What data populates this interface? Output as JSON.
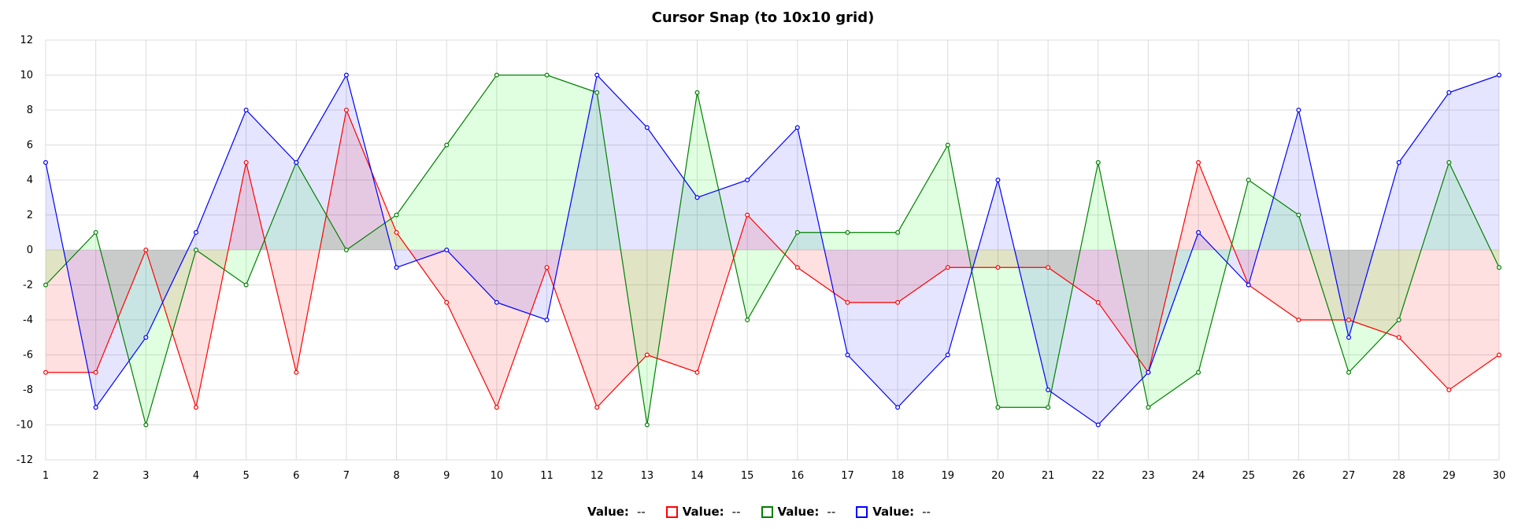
{
  "chart_data": {
    "type": "area",
    "title": "Cursor Snap (to 10x10 grid)",
    "xlabel": "",
    "ylabel": "",
    "x": [
      1,
      2,
      3,
      4,
      5,
      6,
      7,
      8,
      9,
      10,
      11,
      12,
      13,
      14,
      15,
      16,
      17,
      18,
      19,
      20,
      21,
      22,
      23,
      24,
      25,
      26,
      27,
      28,
      29,
      30
    ],
    "xlim": [
      1,
      30
    ],
    "ylim": [
      -12,
      12
    ],
    "yticks": [
      12,
      10,
      8,
      6,
      4,
      2,
      0,
      -2,
      -4,
      -6,
      -8,
      -10,
      -12
    ],
    "grid": true,
    "legend_position": "bottom",
    "series": [
      {
        "color": "#ff0000",
        "fill": "rgba(255,0,0,0.12)",
        "values": [
          -7,
          -7,
          0,
          -9,
          5,
          -7,
          8,
          1,
          -3,
          -9,
          -1,
          -9,
          -6,
          -7,
          2,
          -1,
          -3,
          -3,
          -1,
          -1,
          -1,
          -3,
          -7,
          5,
          -2,
          -4,
          -4,
          -5,
          -8,
          -6
        ]
      },
      {
        "color": "#008000",
        "fill": "rgba(0,255,0,0.12)",
        "values": [
          -2,
          1,
          -10,
          0,
          -2,
          5,
          0,
          2,
          6,
          10,
          10,
          9,
          -10,
          9,
          -4,
          1,
          1,
          1,
          6,
          -9,
          -9,
          5,
          -9,
          -7,
          4,
          2,
          -7,
          -4,
          5,
          -1
        ]
      },
      {
        "color": "#0000ff",
        "fill": "rgba(0,0,255,0.10)",
        "values": [
          5,
          -9,
          -5,
          1,
          8,
          5,
          10,
          -1,
          0,
          -3,
          -4,
          10,
          7,
          3,
          4,
          7,
          -6,
          -9,
          -6,
          4,
          -8,
          -10,
          -7,
          1,
          -2,
          8,
          -5,
          5,
          9,
          10
        ]
      }
    ]
  },
  "legend": [
    {
      "label": "Value:",
      "value": "--",
      "color": null
    },
    {
      "label": "Value:",
      "value": "--",
      "color": "#ff0000"
    },
    {
      "label": "Value:",
      "value": "--",
      "color": "#008000"
    },
    {
      "label": "Value:",
      "value": "--",
      "color": "#0000ff"
    }
  ]
}
